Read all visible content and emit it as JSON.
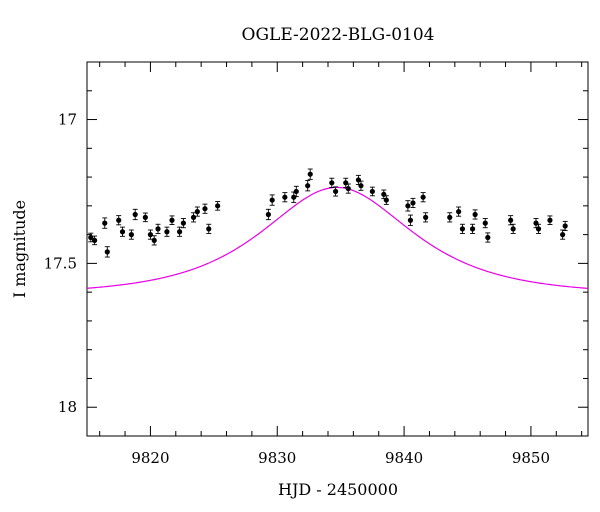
{
  "chart_data": {
    "type": "scatter",
    "title": "OGLE-2022-BLG-0104",
    "xlabel": "HJD - 2450000",
    "ylabel": "I magnitude",
    "xlim": [
      9815.0,
      9854.5
    ],
    "ylim": [
      18.1,
      16.8
    ],
    "y_inverted": true,
    "grid": false,
    "x_ticks": [
      9820,
      9830,
      9840,
      9850
    ],
    "x_tick_labels": [
      "9820",
      "9830",
      "9840",
      "9850"
    ],
    "y_ticks": [
      17.0,
      17.5,
      18.0
    ],
    "y_tick_labels": [
      "17",
      "17.5",
      "18"
    ],
    "model_color": "#e800e8",
    "point_color": "#000000",
    "model": {
      "baseline_mag": 17.61,
      "peak_mag": 17.236,
      "t0": 9834.7,
      "tE": 7.5
    },
    "series": [
      {
        "type": "errorbar",
        "points": [
          [
            9815.3,
            17.41,
            0.015
          ],
          [
            9815.6,
            17.42,
            0.015
          ],
          [
            9816.4,
            17.36,
            0.018
          ],
          [
            9816.6,
            17.46,
            0.018
          ],
          [
            9817.5,
            17.35,
            0.016
          ],
          [
            9817.8,
            17.39,
            0.016
          ],
          [
            9818.5,
            17.4,
            0.016
          ],
          [
            9818.8,
            17.33,
            0.018
          ],
          [
            9819.6,
            17.34,
            0.015
          ],
          [
            9820.0,
            17.4,
            0.016
          ],
          [
            9820.3,
            17.42,
            0.016
          ],
          [
            9820.6,
            17.38,
            0.016
          ],
          [
            9821.3,
            17.39,
            0.016
          ],
          [
            9821.7,
            17.35,
            0.015
          ],
          [
            9822.3,
            17.39,
            0.016
          ],
          [
            9822.6,
            17.36,
            0.016
          ],
          [
            9823.4,
            17.34,
            0.016
          ],
          [
            9823.7,
            17.32,
            0.016
          ],
          [
            9824.3,
            17.31,
            0.016
          ],
          [
            9824.6,
            17.38,
            0.016
          ],
          [
            9825.3,
            17.3,
            0.015
          ],
          [
            9829.3,
            17.33,
            0.018
          ],
          [
            9829.6,
            17.28,
            0.018
          ],
          [
            9830.6,
            17.27,
            0.016
          ],
          [
            9831.3,
            17.27,
            0.018
          ],
          [
            9831.5,
            17.25,
            0.018
          ],
          [
            9832.4,
            17.23,
            0.018
          ],
          [
            9832.6,
            17.19,
            0.018
          ],
          [
            9834.3,
            17.22,
            0.016
          ],
          [
            9834.6,
            17.25,
            0.016
          ],
          [
            9835.4,
            17.22,
            0.016
          ],
          [
            9835.6,
            17.24,
            0.016
          ],
          [
            9836.4,
            17.21,
            0.016
          ],
          [
            9836.6,
            17.23,
            0.016
          ],
          [
            9837.5,
            17.25,
            0.015
          ],
          [
            9838.4,
            17.26,
            0.015
          ],
          [
            9838.6,
            17.28,
            0.015
          ],
          [
            9840.3,
            17.3,
            0.018
          ],
          [
            9840.5,
            17.35,
            0.018
          ],
          [
            9840.7,
            17.29,
            0.016
          ],
          [
            9841.5,
            17.27,
            0.016
          ],
          [
            9841.7,
            17.34,
            0.016
          ],
          [
            9843.6,
            17.34,
            0.016
          ],
          [
            9844.3,
            17.32,
            0.016
          ],
          [
            9844.6,
            17.38,
            0.016
          ],
          [
            9845.4,
            17.38,
            0.016
          ],
          [
            9845.6,
            17.33,
            0.016
          ],
          [
            9846.4,
            17.36,
            0.016
          ],
          [
            9846.6,
            17.41,
            0.016
          ],
          [
            9848.4,
            17.35,
            0.016
          ],
          [
            9848.6,
            17.38,
            0.016
          ],
          [
            9850.4,
            17.36,
            0.016
          ],
          [
            9850.6,
            17.38,
            0.016
          ],
          [
            9851.5,
            17.35,
            0.015
          ],
          [
            9852.5,
            17.4,
            0.016
          ],
          [
            9852.7,
            17.37,
            0.016
          ]
        ]
      }
    ]
  }
}
